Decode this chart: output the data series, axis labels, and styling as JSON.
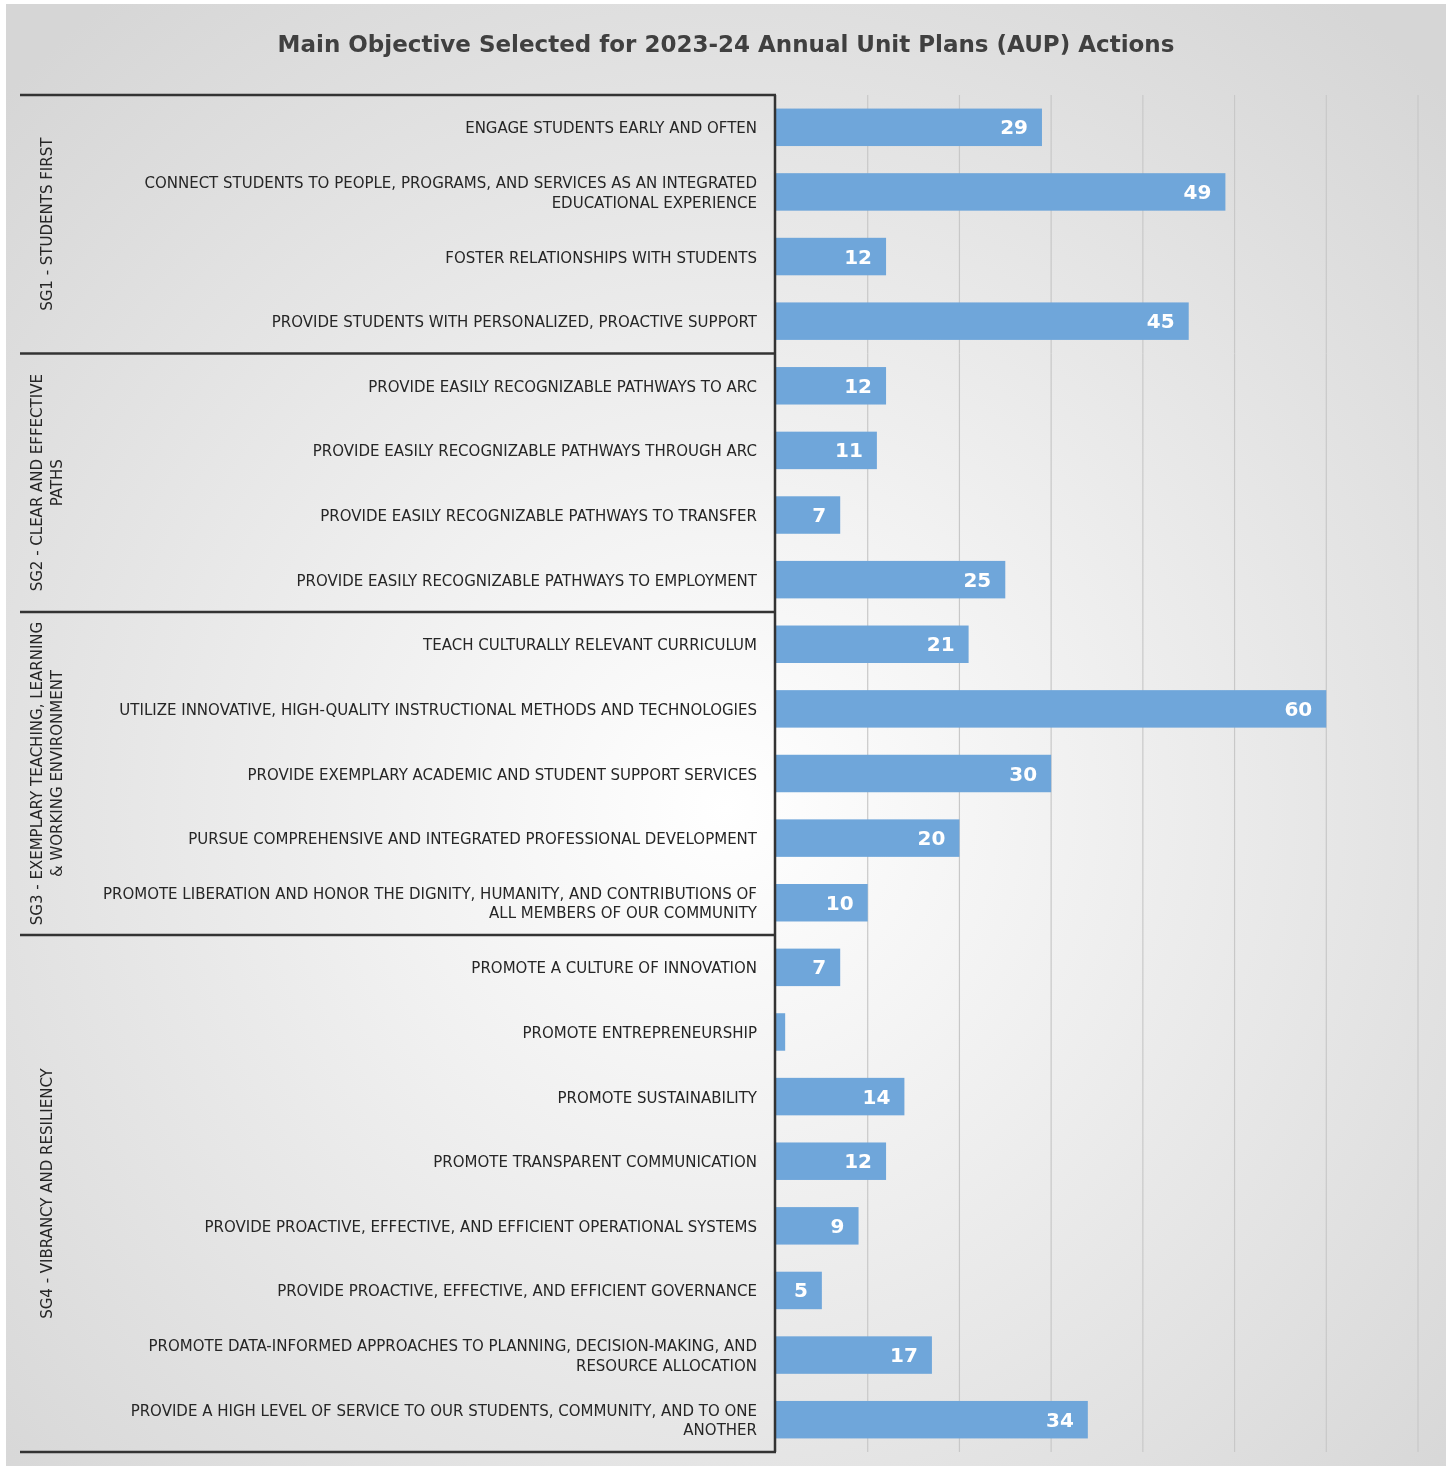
{
  "chart_data": [
    {
      "type": "bar",
      "orientation": "horizontal",
      "title": "Main Objective Selected for 2023-24 Annual Unit Plans (AUP) Actions",
      "ylabel": "SG1 - STUDENTS FIRST",
      "categories": [
        "ENGAGE STUDENTS EARLY AND OFTEN",
        "CONNECT STUDENTS TO PEOPLE, PROGRAMS, AND SERVICES AS AN INTEGRATED EDUCATIONAL EXPERIENCE",
        "FOSTER RELATIONSHIPS WITH STUDENTS",
        "PROVIDE STUDENTS WITH PERSONALIZED, PROACTIVE SUPPORT"
      ],
      "values": [
        29,
        49,
        12,
        45
      ],
      "data_labels": true,
      "color": "#6fa6da",
      "xlim": [
        0,
        70
      ],
      "xticks": [
        {
          "value": 10,
          "label": null
        },
        {
          "value": 20,
          "label": null
        },
        {
          "value": 30,
          "label": null
        },
        {
          "value": 40,
          "label": null
        },
        {
          "value": 50,
          "label": null
        },
        {
          "value": 60,
          "label": null
        },
        {
          "value": 70,
          "label": null
        }
      ],
      "grid": "x",
      "tick_labels": "y"
    },
    {
      "type": "bar",
      "orientation": "horizontal",
      "ylabel": "SG2 - CLEAR AND EFFECTIVE PATHS",
      "categories": [
        "PROVIDE EASILY RECOGNIZABLE PATHWAYS TO ARC",
        "PROVIDE EASILY RECOGNIZABLE PATHWAYS THROUGH ARC",
        "PROVIDE EASILY RECOGNIZABLE PATHWAYS TO TRANSFER",
        "PROVIDE EASILY RECOGNIZABLE PATHWAYS TO EMPLOYMENT"
      ],
      "values": [
        12,
        11,
        7,
        25
      ],
      "data_labels": true,
      "color": "#6fa6da",
      "xlim": [
        0,
        70
      ],
      "xticks": [
        {
          "value": 10,
          "label": null
        },
        {
          "value": 20,
          "label": null
        },
        {
          "value": 30,
          "label": null
        },
        {
          "value": 40,
          "label": null
        },
        {
          "value": 50,
          "label": null
        },
        {
          "value": 60,
          "label": null
        },
        {
          "value": 70,
          "label": null
        }
      ],
      "grid": "x",
      "tick_labels": "y"
    },
    {
      "type": "bar",
      "orientation": "horizontal",
      "ylabel": "SG3 - EXEMPLARY TEACHING, LEARNING & WORKING ENVIRONMENT",
      "categories": [
        "TEACH CULTURALLY RELEVANT CURRICULUM",
        "UTILIZE INNOVATIVE, HIGH-QUALITY INSTRUCTIONAL METHODS AND TECHNOLOGIES",
        "PROVIDE EXEMPLARY ACADEMIC AND STUDENT SUPPORT SERVICES",
        "PURSUE COMPREHENSIVE AND INTEGRATED PROFESSIONAL DEVELOPMENT",
        "PROMOTE LIBERATION AND HONOR THE DIGNITY, HUMANITY, AND CONTRIBUTIONS OF ALL MEMBERS OF OUR COMMUNITY"
      ],
      "values": [
        21,
        60,
        30,
        20,
        10
      ],
      "data_labels": true,
      "color": "#6fa6da",
      "xlim": [
        0,
        70
      ],
      "xticks": [
        {
          "value": 10,
          "label": null
        },
        {
          "value": 20,
          "label": null
        },
        {
          "value": 30,
          "label": null
        },
        {
          "value": 40,
          "label": null
        },
        {
          "value": 50,
          "label": null
        },
        {
          "value": 60,
          "label": null
        },
        {
          "value": 70,
          "label": null
        }
      ],
      "grid": "x",
      "tick_labels": "y"
    },
    {
      "type": "bar",
      "orientation": "horizontal",
      "ylabel": "SG4 - VIBRANCY AND RESILIENCY",
      "categories": [
        "PROMOTE A CULTURE OF INNOVATION",
        "PROMOTE ENTREPRENEURSHIP",
        "PROMOTE SUSTAINABILITY",
        "PROMOTE TRANSPARENT COMMUNICATION",
        "PROVIDE PROACTIVE, EFFECTIVE, AND EFFICIENT OPERATIONAL SYSTEMS",
        "PROVIDE PROACTIVE, EFFECTIVE, AND EFFICIENT GOVERNANCE",
        "PROMOTE DATA-INFORMED APPROACHES TO PLANNING, DECISION-MAKING, AND RESOURCE ALLOCATION",
        "PROVIDE A HIGH LEVEL OF SERVICE TO OUR STUDENTS, COMMUNITY, AND TO ONE ANOTHER"
      ],
      "values": [
        7,
        1,
        14,
        12,
        9,
        5,
        17,
        34
      ],
      "value_labels": [
        "7",
        null,
        "14",
        "12",
        "9",
        "5",
        "17",
        "34"
      ],
      "color": "#6fa6da",
      "xlim": [
        0,
        70
      ],
      "xticks": [
        {
          "value": 10,
          "label": null
        },
        {
          "value": 20,
          "label": null
        },
        {
          "value": 30,
          "label": null
        },
        {
          "value": 40,
          "label": null
        },
        {
          "value": 50,
          "label": null
        },
        {
          "value": 60,
          "label": null
        },
        {
          "value": 70,
          "label": null
        }
      ],
      "grid": "x",
      "tick_labels": "y"
    }
  ]
}
